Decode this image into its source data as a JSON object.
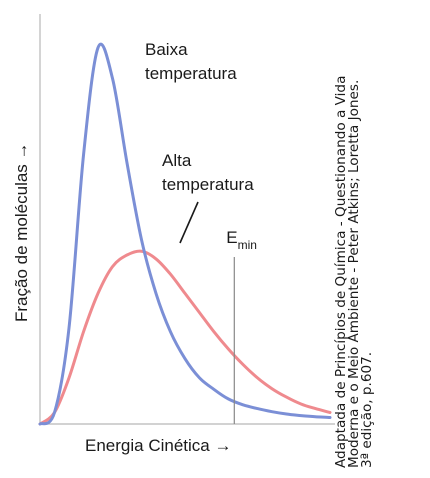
{
  "chart_data": {
    "type": "line",
    "xlabel": "Energia Cinética →",
    "ylabel": "Fração de moléculas →",
    "series": [
      {
        "name": "Baixa temperatura",
        "color": "#7b8fd6",
        "x": [
          0,
          0.05,
          0.1,
          0.15,
          0.2,
          0.25,
          0.3,
          0.35,
          0.4,
          0.45,
          0.5,
          0.55,
          0.6,
          0.65,
          0.7,
          0.75,
          0.8,
          0.85,
          0.9,
          0.95,
          1.0
        ],
        "y": [
          0,
          0.03,
          0.25,
          0.7,
          0.98,
          0.9,
          0.68,
          0.48,
          0.34,
          0.24,
          0.17,
          0.12,
          0.09,
          0.065,
          0.05,
          0.04,
          0.032,
          0.026,
          0.022,
          0.019,
          0.017
        ]
      },
      {
        "name": "Alta temperatura",
        "color": "#ef8a8e",
        "x": [
          0,
          0.05,
          0.1,
          0.15,
          0.2,
          0.25,
          0.3,
          0.35,
          0.4,
          0.45,
          0.5,
          0.55,
          0.6,
          0.65,
          0.7,
          0.75,
          0.8,
          0.85,
          0.9,
          0.95,
          1.0
        ],
        "y": [
          0,
          0.03,
          0.12,
          0.24,
          0.34,
          0.41,
          0.44,
          0.45,
          0.43,
          0.39,
          0.34,
          0.29,
          0.24,
          0.195,
          0.155,
          0.12,
          0.092,
          0.07,
          0.052,
          0.04,
          0.03
        ]
      }
    ],
    "threshold": {
      "label": "E",
      "subscript": "min",
      "x": 0.67
    },
    "annotations": [
      {
        "lines": [
          "Baixa",
          "temperatura"
        ]
      },
      {
        "lines": [
          "Alta",
          "temperatura"
        ]
      }
    ],
    "xlim": [
      0,
      1
    ],
    "ylim": [
      0,
      1
    ],
    "grid": false
  },
  "credit": {
    "line1": "Adaptada de Princípios de Química - Questionando a Vida",
    "line2": "Moderna e o Meio Ambiente - Peter Atkins; Loretta Jones.",
    "line3": "3ª edição, p.607."
  }
}
